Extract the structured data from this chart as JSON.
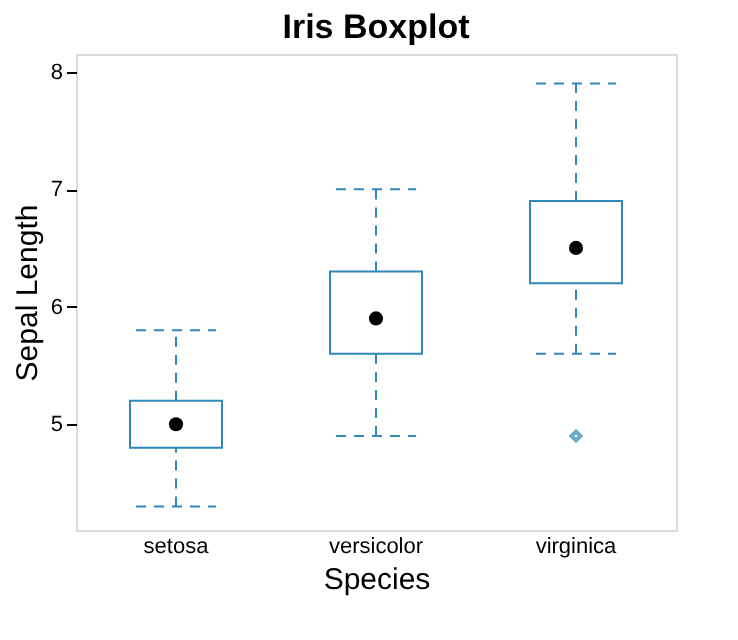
{
  "chart_data": {
    "type": "box",
    "title": "Iris Boxplot",
    "xlabel": "Species",
    "ylabel": "Sepal Length",
    "categories": [
      "setosa",
      "versicolor",
      "virginica"
    ],
    "series": [
      {
        "color": "#2f88b8",
        "boxes": [
          {
            "low": 4.3,
            "q1": 4.8,
            "median": 5.0,
            "q3": 5.2,
            "high": 5.8
          },
          {
            "low": 4.9,
            "q1": 5.6,
            "median": 5.9,
            "q3": 6.3,
            "high": 7.0
          },
          {
            "low": 5.6,
            "q1": 6.2,
            "median": 6.5,
            "q3": 6.9,
            "high": 7.9,
            "outliers": [
              4.9
            ]
          }
        ]
      }
    ],
    "ylim": [
      4.1,
      8.15
    ],
    "yticks": [
      5,
      6,
      7,
      8
    ],
    "grid": false,
    "line_style": "dashed"
  }
}
